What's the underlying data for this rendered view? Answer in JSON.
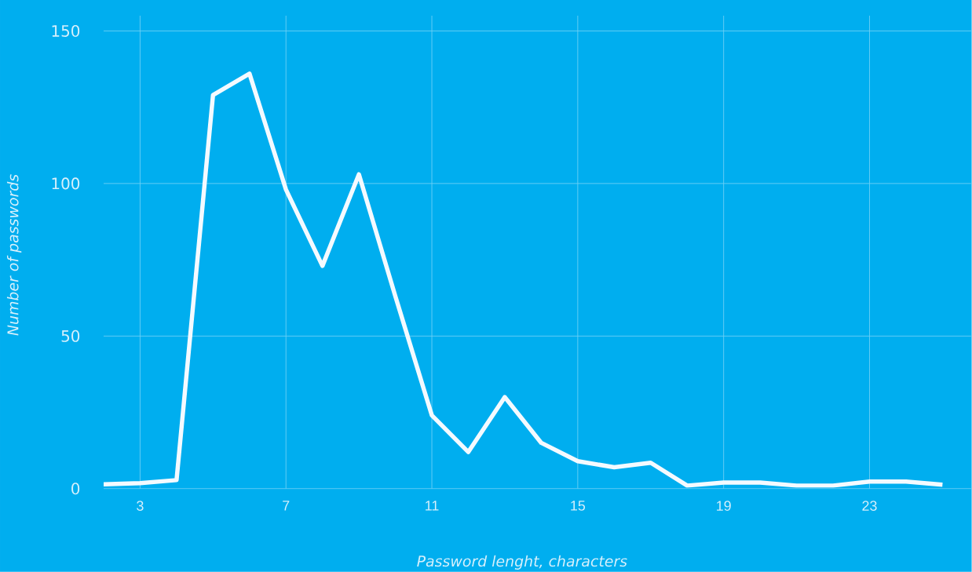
{
  "chart_data": {
    "type": "line",
    "xlabel": "Password lenght, characters",
    "ylabel": "Number of passwords",
    "x": [
      2,
      3,
      4,
      5,
      6,
      7,
      8,
      9,
      10,
      11,
      12,
      13,
      14,
      15,
      16,
      17,
      18,
      19,
      20,
      21,
      22,
      23,
      24,
      25
    ],
    "series": [
      {
        "color": "#f4faff",
        "values": [
          1.4,
          1.8,
          2.8,
          129,
          136,
          98,
          73,
          103,
          63,
          24,
          12,
          30,
          15,
          9,
          7,
          8.5,
          1,
          2,
          2,
          1,
          1,
          2.3,
          2.3,
          1.3
        ]
      }
    ],
    "xlim": [
      2,
      25.8
    ],
    "ylim": [
      0,
      155
    ],
    "xticks": [
      3,
      7,
      11,
      15,
      19,
      23
    ],
    "yticks": [
      0,
      50,
      100,
      150
    ],
    "grid": true,
    "marker": "none",
    "line_style": "solid"
  }
}
